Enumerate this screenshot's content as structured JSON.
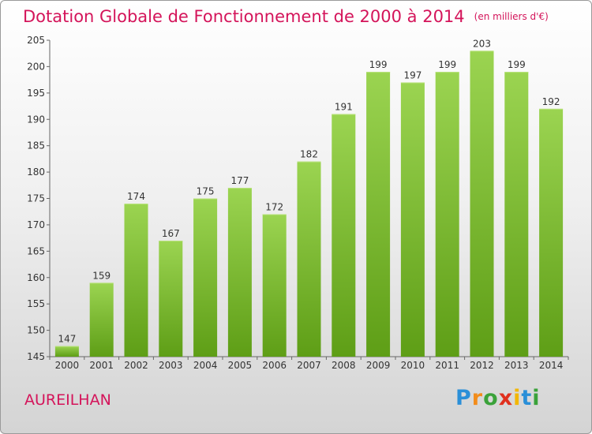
{
  "chart_data": {
    "type": "bar",
    "title": "Dotation Globale de Fonctionnement de 2000 à 2014",
    "unit": "(en milliers d'€)",
    "categories": [
      "2000",
      "2001",
      "2002",
      "2003",
      "2004",
      "2005",
      "2006",
      "2007",
      "2008",
      "2009",
      "2010",
      "2011",
      "2012",
      "2013",
      "2014"
    ],
    "values": [
      147,
      159,
      174,
      167,
      175,
      177,
      172,
      182,
      191,
      199,
      197,
      199,
      203,
      199,
      192
    ],
    "ylim": [
      145,
      205
    ],
    "yticks": [
      145,
      150,
      155,
      160,
      165,
      170,
      175,
      180,
      185,
      190,
      195,
      200,
      205
    ],
    "grid": false,
    "bar_color": "#7cc236"
  },
  "place_name": "AUREILHAN",
  "logo": {
    "p": "P",
    "r": "r",
    "o": "o",
    "x": "x",
    "i": "i",
    "t": "t",
    "i2": "i"
  }
}
